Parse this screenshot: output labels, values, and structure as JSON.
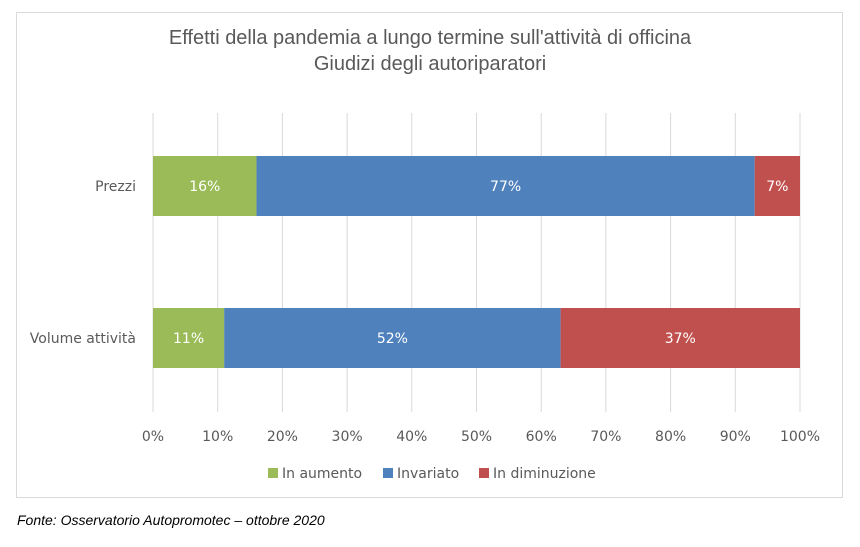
{
  "chart_data": {
    "type": "bar",
    "orientation": "horizontal",
    "stacked": true,
    "title": "Effetti della pandemia a lungo termine sull'attività di officina",
    "subtitle": "Giudizi degli autoriparatori",
    "categories": [
      "Prezzi",
      "Volume attività"
    ],
    "series": [
      {
        "name": "In aumento",
        "values": [
          16,
          11
        ],
        "labels": [
          "16%",
          "11%"
        ],
        "color": "#9bbb59"
      },
      {
        "name": "Invariato",
        "values": [
          77,
          52
        ],
        "labels": [
          "77%",
          "52%"
        ],
        "color": "#4f81bd"
      },
      {
        "name": "In diminuzione",
        "values": [
          7,
          37
        ],
        "labels": [
          "7%",
          "37%"
        ],
        "color": "#c0504d"
      }
    ],
    "xlim": [
      0,
      100
    ],
    "x_ticks": [
      "0%",
      "10%",
      "20%",
      "30%",
      "40%",
      "50%",
      "60%",
      "70%",
      "80%",
      "90%",
      "100%"
    ],
    "grid": true,
    "legend_position": "bottom"
  },
  "source": "Fonte: Osservatorio Autopromotec – ottobre 2020"
}
